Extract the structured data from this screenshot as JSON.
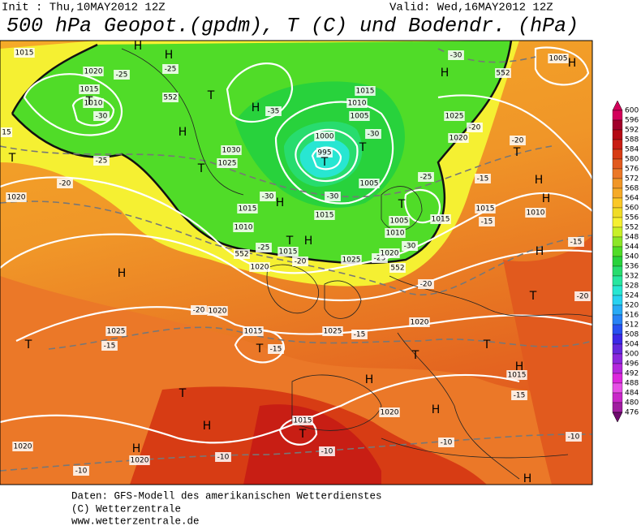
{
  "header": {
    "init": "Init : Thu,10MAY2012 12Z",
    "valid": "Valid: Wed,16MAY2012 12Z",
    "title": "500 hPa Geopot.(gpdm), T (C) und Bodendr. (hPa)"
  },
  "map_labels": [
    "1015",
    "1020",
    "-25",
    "1015",
    "1010",
    "-30",
    "15",
    "H",
    "H",
    "-25",
    "T",
    "T",
    "H",
    "H",
    "T",
    "1030",
    "1025",
    "-35",
    "1015",
    "1010",
    "1005",
    "1000",
    "995",
    "T",
    "-30",
    "T",
    "-25",
    "-20",
    "1025",
    "1020",
    "-30",
    "1005",
    "H",
    "H",
    "T",
    "-20",
    "-15",
    "H",
    "H",
    "1015",
    "-15",
    "1010",
    "-15",
    "H",
    "T",
    "-20",
    "T",
    "-25",
    "-20",
    "1020",
    "H",
    "-30",
    "-30",
    "1005",
    "T",
    "1005",
    "1010",
    "1015",
    "1015",
    "1015",
    "1010",
    "-25",
    "T",
    "1015",
    "-20",
    "1025",
    "-25",
    "1020",
    "-30",
    "H",
    "-20",
    "1020",
    "552",
    "552",
    "552",
    "552",
    "H",
    "-20",
    "1020",
    "1025",
    "-15",
    "1015",
    "T",
    "-15",
    "1025",
    "-15",
    "1020",
    "T",
    "T",
    "H",
    "1015",
    "-15",
    "H",
    "T",
    "T",
    "H",
    "1020",
    "H",
    "1015",
    "T",
    "-10",
    "-10",
    "-10",
    "-10",
    "1020",
    "H",
    "1020",
    "-10",
    "H"
  ],
  "colorbar": {
    "values": [
      600,
      596,
      592,
      588,
      584,
      580,
      576,
      572,
      568,
      564,
      560,
      556,
      552,
      548,
      544,
      540,
      536,
      532,
      528,
      524,
      520,
      516,
      512,
      508,
      504,
      500,
      496,
      492,
      488,
      484,
      480,
      476
    ],
    "colors": [
      "#d2005a",
      "#a0002a",
      "#b40a14",
      "#c81e14",
      "#d73c14",
      "#e15a1e",
      "#eb7828",
      "#f09628",
      "#f5aa28",
      "#fac828",
      "#f0dc28",
      "#f5f032",
      "#c8f028",
      "#8ce628",
      "#50dc28",
      "#28d23c",
      "#28dc6e",
      "#28e6a0",
      "#28e6d2",
      "#28d2f0",
      "#28aaf5",
      "#2882f5",
      "#2850f0",
      "#3c28e6",
      "#6428dc",
      "#8c28dc",
      "#b428dc",
      "#dc28dc",
      "#e650e6",
      "#c828c8",
      "#a01ea0",
      "#6e0a6e"
    ]
  },
  "footer": [
    "Daten: GFS-Modell des amerikanischen Wetterdienstes",
    "(C) Wetterzentrale",
    "www.wetterzentrale.de"
  ]
}
